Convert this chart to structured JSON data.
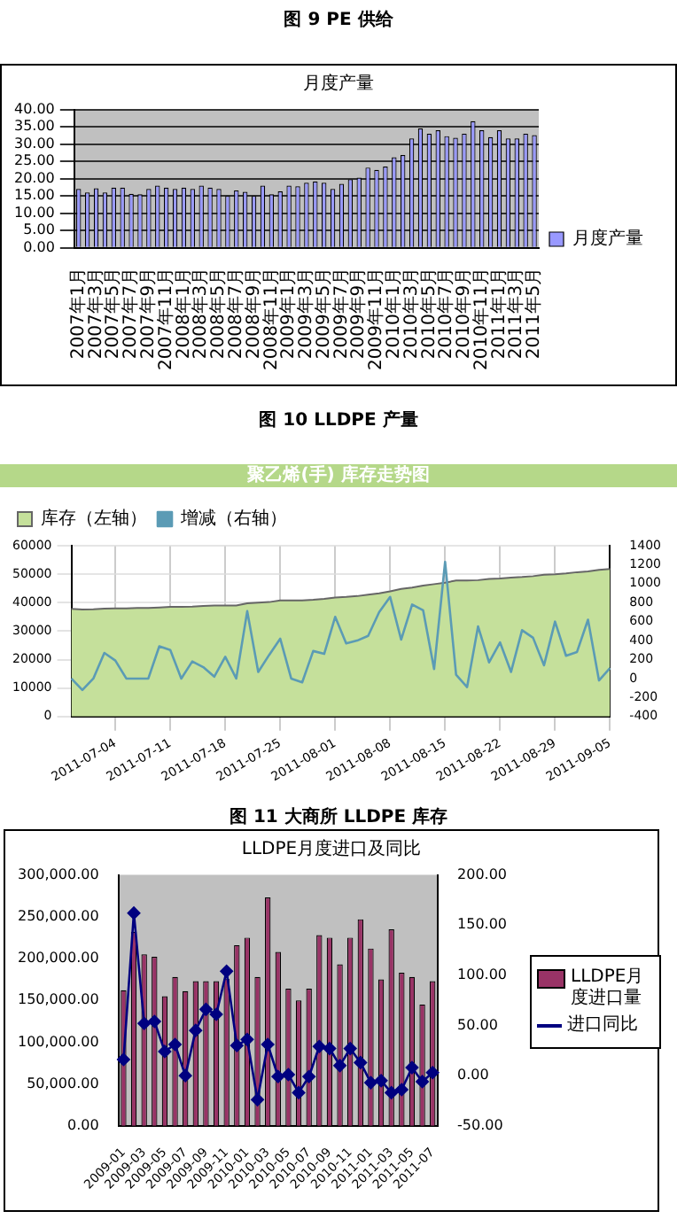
{
  "chart_data": [
    {
      "type": "bar",
      "title": "月度产量",
      "annotations": [
        "图 9 PE 供给"
      ],
      "legend": "right",
      "grid": "y",
      "categories": [
        "2007年1月",
        null,
        "2007年3月",
        null,
        "2007年5月",
        null,
        "2007年7月",
        null,
        "2007年9月",
        null,
        "2007年11月",
        null,
        "2008年1月",
        null,
        "2008年3月",
        null,
        "2008年5月",
        null,
        "2008年7月",
        null,
        "2008年9月",
        null,
        "2008年11月",
        null,
        "2009年1月",
        null,
        "2009年3月",
        null,
        "2009年5月",
        null,
        "2009年7月",
        null,
        "2009年9月",
        null,
        "2009年11月",
        null,
        "2010年1月",
        null,
        "2010年3月",
        null,
        "2010年5月",
        null,
        "2010年7月",
        null,
        "2010年9月",
        null,
        "2010年11月",
        null,
        "2011年1月",
        null,
        "2011年3月",
        null,
        "2011年5月"
      ],
      "series": [
        {
          "name": "月度产量",
          "color": "#9999ff",
          "values": [
            17,
            16,
            17.2,
            16,
            17.4,
            17.4,
            15.6,
            15.5,
            17,
            18,
            17.4,
            17,
            17.4,
            17,
            18,
            17.4,
            17,
            15,
            16.6,
            16.2,
            15,
            18,
            15.5,
            16.3,
            18,
            17.8,
            18.8,
            19.2,
            18.8,
            17,
            18.5,
            19.8,
            20.3,
            23.2,
            22.5,
            23.5,
            26.2,
            26.8,
            31.6,
            34.5,
            33,
            34,
            32.3,
            31.8,
            33,
            36.6,
            34,
            32,
            34,
            31.6,
            31.6,
            33,
            32.6
          ]
        }
      ],
      "ylim": [
        0,
        40
      ],
      "yticks": [
        {
          "value": 0,
          "label": "0.00"
        },
        {
          "value": 5,
          "label": "5.00"
        },
        {
          "value": 10,
          "label": "10.00"
        },
        {
          "value": 15,
          "label": "15.00"
        },
        {
          "value": 20,
          "label": "20.00"
        },
        {
          "value": 25,
          "label": "25.00"
        },
        {
          "value": 30,
          "label": "30.00"
        },
        {
          "value": 35,
          "label": "35.00"
        },
        {
          "value": 40,
          "label": "40.00"
        }
      ]
    },
    {
      "type": "area",
      "title": "聚乙烯(手) 库存走势图",
      "annotations": [
        "图 10 LLDPE 产量"
      ],
      "legend": "top left",
      "grid": true,
      "categories": [
        null,
        null,
        null,
        null,
        "2011-07-04",
        null,
        null,
        null,
        null,
        "2011-07-11",
        null,
        null,
        null,
        null,
        "2011-07-18",
        null,
        null,
        null,
        null,
        "2011-07-25",
        null,
        null,
        null,
        null,
        "2011-08-01",
        null,
        null,
        null,
        null,
        "2011-08-08",
        null,
        null,
        null,
        null,
        "2011-08-15",
        null,
        null,
        null,
        null,
        "2011-08-22",
        null,
        null,
        null,
        null,
        "2011-08-29",
        null,
        null,
        null,
        null,
        "2011-09-05"
      ],
      "series": [
        {
          "name": "库存（左轴）",
          "color": "#c5e09b",
          "values": [
            37800,
            37600,
            37700,
            37900,
            38000,
            38000,
            38100,
            38100,
            38300,
            38500,
            38500,
            38600,
            38800,
            39000,
            39000,
            39000,
            39800,
            40000,
            40200,
            40800,
            40800,
            40800,
            41000,
            41300,
            41800,
            42000,
            42300,
            42800,
            43300,
            44000,
            44800,
            45300,
            46000,
            46500,
            47000,
            47800,
            47800,
            47900,
            48300,
            48500,
            48800,
            49000,
            49300,
            49800,
            50000,
            50300,
            50700,
            51000,
            51500,
            51800
          ]
        },
        {
          "name": "增减（右轴）",
          "type": "line",
          "axis": "y2",
          "color": "#5b9bb5",
          "values": [
            0,
            -120,
            0,
            270,
            190,
            0,
            0,
            0,
            340,
            300,
            0,
            180,
            120,
            20,
            230,
            0,
            710,
            70,
            250,
            420,
            0,
            -40,
            290,
            260,
            650,
            370,
            400,
            450,
            700,
            860,
            410,
            780,
            720,
            100,
            1230,
            40,
            -90,
            550,
            170,
            380,
            70,
            510,
            430,
            140,
            600,
            240,
            280,
            620,
            -20,
            110
          ]
        }
      ],
      "ylim": [
        0,
        60000
      ],
      "yticks": [
        0,
        10000,
        20000,
        30000,
        40000,
        50000,
        60000
      ],
      "y2lim": [
        -400,
        1400
      ],
      "y2ticks": [
        -400,
        -200,
        0,
        200,
        400,
        600,
        800,
        1000,
        1200,
        1400
      ]
    },
    {
      "type": "bar",
      "title": "LLDPE月度进口及同比",
      "annotations": [
        "图 11 大商所 LLDPE 库存"
      ],
      "legend": "right",
      "marker": "diamond",
      "categories": [
        "2009-01",
        null,
        "2009-03",
        null,
        "2009-05",
        null,
        "2009-07",
        null,
        "2009-09",
        null,
        "2009-11",
        null,
        "2010-01",
        null,
        "2010-03",
        null,
        "2010-05",
        null,
        "2010-07",
        null,
        "2010-09",
        null,
        "2010-11",
        null,
        "2011-01",
        null,
        "2011-03",
        null,
        "2011-05",
        null,
        "2011-07"
      ],
      "series": [
        {
          "name": "LLDPE月度进口量",
          "color": "#993366",
          "values": [
            162000,
            232000,
            205000,
            202000,
            155000,
            178000,
            161000,
            173000,
            173000,
            173000,
            176000,
            216000,
            225000,
            178000,
            273000,
            208000,
            164000,
            150000,
            164000,
            228000,
            225000,
            193000,
            225000,
            247000,
            212000,
            175000,
            235000,
            183000,
            178000,
            145000,
            173000
          ]
        },
        {
          "name": "进口同比",
          "type": "line",
          "axis": "y2",
          "color": "#000080",
          "values": [
            16,
            162,
            52,
            54,
            24,
            31,
            0,
            45,
            66,
            61,
            104,
            30,
            36,
            -24,
            31,
            -1,
            1,
            -17,
            -1,
            29,
            27,
            10,
            27,
            13,
            -7,
            -5,
            -17,
            -14,
            8,
            -6,
            3
          ]
        }
      ],
      "ylim": [
        0,
        300000
      ],
      "yticks": [
        {
          "value": 0,
          "label": "0.00"
        },
        {
          "value": 50000,
          "label": "50,000.00"
        },
        {
          "value": 100000,
          "label": "100,000.00"
        },
        {
          "value": 150000,
          "label": "150,000.00"
        },
        {
          "value": 200000,
          "label": "200,000.00"
        },
        {
          "value": 250000,
          "label": "250,000.00"
        },
        {
          "value": 300000,
          "label": "300,000.00"
        }
      ],
      "y2lim": [
        -50,
        200
      ],
      "y2ticks": [
        {
          "value": -50,
          "label": "-50.00"
        },
        {
          "value": 0,
          "label": "0.00"
        },
        {
          "value": 50,
          "label": "50.00"
        },
        {
          "value": 100,
          "label": "100.00"
        },
        {
          "value": 150,
          "label": "150.00"
        },
        {
          "value": 200,
          "label": "200.00"
        }
      ]
    }
  ]
}
